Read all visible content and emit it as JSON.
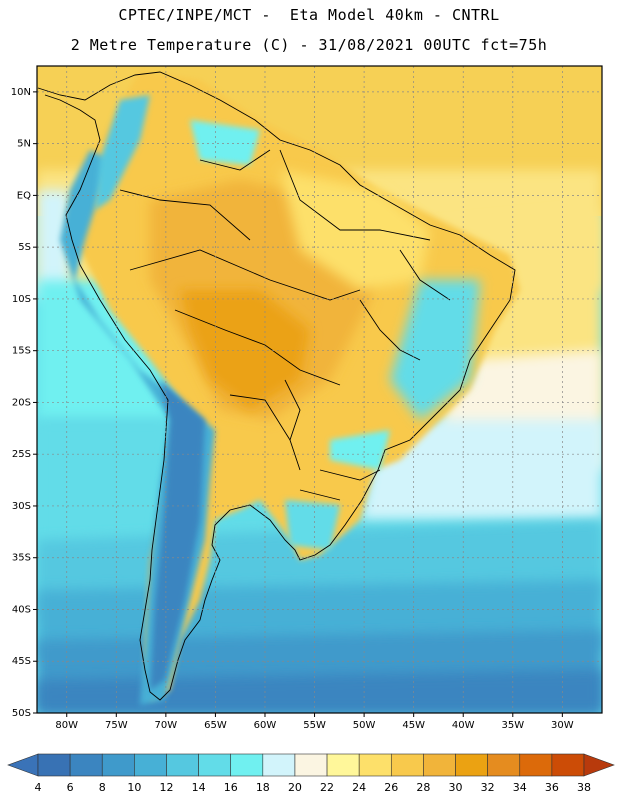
{
  "header": {
    "line1": "CPTEC/INPE/MCT -  Eta Model 40km - CNTRL",
    "line2": "2 Metre Temperature (C) - 31/08/2021 00UTC fct=75h"
  },
  "map": {
    "lat_labels": [
      "10N",
      "5N",
      "EQ",
      "5S",
      "10S",
      "15S",
      "20S",
      "25S",
      "30S",
      "35S",
      "40S",
      "45S",
      "50S"
    ],
    "lon_labels": [
      "80W",
      "75W",
      "70W",
      "65W",
      "60W",
      "55W",
      "50W",
      "45W",
      "40W",
      "35W",
      "30W"
    ],
    "lat_values": [
      10,
      5,
      0,
      -5,
      -10,
      -15,
      -20,
      -25,
      -30,
      -35,
      -40,
      -45,
      -50
    ],
    "lon_values": [
      -80,
      -75,
      -70,
      -65,
      -60,
      -55,
      -50,
      -45,
      -40,
      -35,
      -30
    ],
    "lon_range": [
      -83,
      -26
    ],
    "lat_range": [
      -50,
      12.5
    ]
  },
  "colorbar": {
    "labels": [
      "4",
      "6",
      "8",
      "10",
      "12",
      "14",
      "16",
      "18",
      "20",
      "22",
      "24",
      "26",
      "28",
      "30",
      "32",
      "34",
      "36",
      "38"
    ],
    "low_color": "#3a73b8",
    "high_color": "#b83a0c",
    "colors": [
      "#3872b4",
      "#3b85c0",
      "#3f9acb",
      "#47b0d6",
      "#55c8e0",
      "#62dce8",
      "#70f0f0",
      "#d2f4fb",
      "#fbf5e2",
      "#fff79a",
      "#fde06a",
      "#f8c94c",
      "#f1b43a",
      "#eba212",
      "#e58c1f",
      "#dc6a0a",
      "#cc4c06"
    ]
  }
}
